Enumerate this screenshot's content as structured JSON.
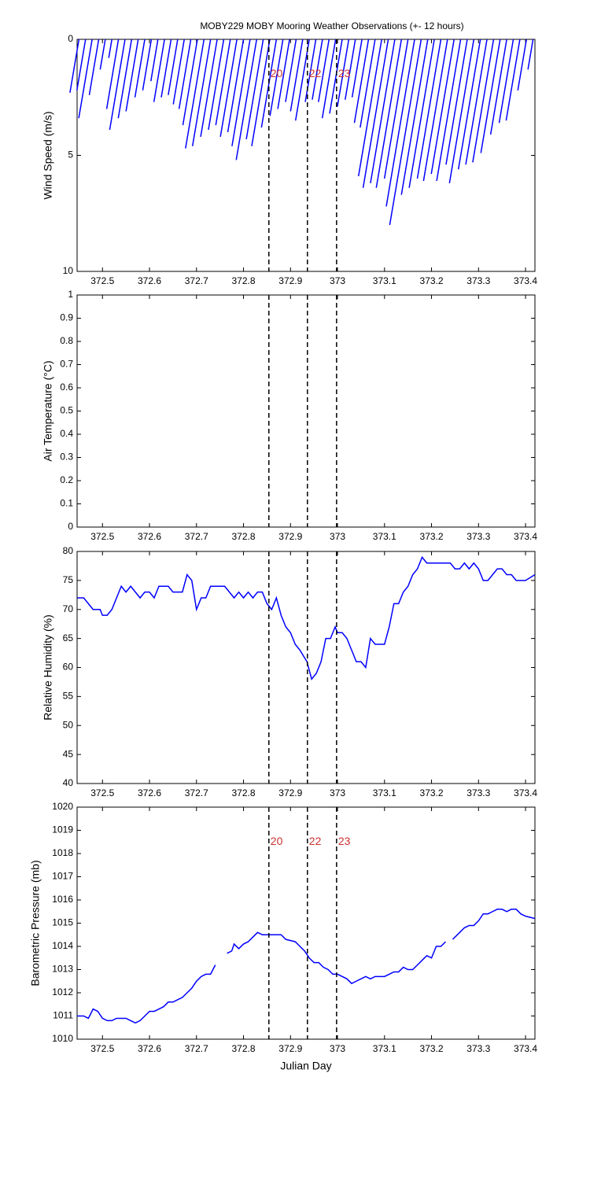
{
  "chart_data": [
    {
      "type": "stick",
      "title": "MOBY229 MOBY Mooring Weather Observations (+- 12 hours)",
      "ylabel": "Wind Speed (m/s)",
      "xlim": [
        372.446,
        373.42
      ],
      "xticks": [
        372.5,
        372.6,
        372.7,
        372.8,
        372.9,
        373,
        373.1,
        373.2,
        373.3,
        373.4
      ],
      "ylim": [
        0,
        10
      ],
      "yticks": [
        0,
        5,
        10
      ],
      "y_reversed": true,
      "color": "#0000ff",
      "vlines": [
        372.854,
        372.936,
        372.998
      ],
      "vline_labels": [
        "20",
        "22",
        "23"
      ],
      "vline_label_y": 1.5,
      "vline_label_color": "#cc3333",
      "x": [
        372.45,
        372.464,
        372.478,
        372.492,
        372.506,
        372.52,
        372.534,
        372.548,
        372.562,
        372.576,
        372.59,
        372.604,
        372.618,
        372.632,
        372.646,
        372.66,
        372.674,
        372.688,
        372.702,
        372.716,
        372.73,
        372.744,
        372.758,
        372.772,
        372.786,
        372.8,
        372.814,
        372.828,
        372.842,
        372.856,
        372.87,
        372.884,
        372.898,
        372.912,
        372.926,
        372.94,
        372.954,
        372.968,
        372.982,
        372.996,
        373.01,
        373.024,
        373.038,
        373.052,
        373.066,
        373.08,
        373.094,
        373.108,
        373.122,
        373.136,
        373.15,
        373.164,
        373.178,
        373.192,
        373.206,
        373.22,
        373.234,
        373.248,
        373.262,
        373.276,
        373.29,
        373.304,
        373.318,
        373.332,
        373.346,
        373.36,
        373.374,
        373.388,
        373.402,
        373.416
      ],
      "values": [
        2.3,
        2.2,
        3.4,
        2.4,
        1.3,
        0.8,
        3.0,
        3.9,
        3.4,
        3.1,
        2.5,
        2.2,
        1.8,
        2.7,
        2.5,
        2.4,
        2.8,
        3.0,
        3.7,
        4.7,
        4.6,
        4.2,
        3.9,
        3.7,
        4.2,
        4.0,
        4.6,
        5.2,
        4.3,
        4.6,
        3.8,
        3.3,
        3.0,
        2.7,
        3.1,
        3.5,
        2.7,
        2.6,
        2.7,
        3.4,
        3.2,
        2.9,
        2.6,
        2.5,
        3.6,
        3.8,
        5.9,
        6.4,
        6.2,
        6.4,
        6.0,
        7.2,
        8.0,
        6.7,
        6.4,
        6.0,
        6.1,
        5.8,
        6.1,
        5.4,
        6.2,
        5.6,
        5.4,
        5.3,
        4.9,
        4.1,
        3.6,
        3.5,
        2.2,
        1.3
      ]
    },
    {
      "type": "line",
      "ylabel": "Air Temperature (°C)",
      "xlim": [
        372.446,
        373.42
      ],
      "xticks": [
        372.5,
        372.6,
        372.7,
        372.8,
        372.9,
        373,
        373.1,
        373.2,
        373.3,
        373.4
      ],
      "ylim": [
        0,
        1
      ],
      "yticks": [
        0,
        0.1,
        0.2,
        0.3,
        0.4,
        0.5,
        0.6,
        0.7,
        0.8,
        0.9,
        1
      ],
      "vlines": [
        372.854,
        372.936,
        372.998
      ],
      "x": [],
      "values": [],
      "color": "#0000ff"
    },
    {
      "type": "line",
      "ylabel": "Relative Humidity (%)",
      "xlim": [
        372.446,
        373.42
      ],
      "xticks": [
        372.5,
        372.6,
        372.7,
        372.8,
        372.9,
        373,
        373.1,
        373.2,
        373.3,
        373.4
      ],
      "ylim": [
        40,
        80
      ],
      "yticks": [
        40,
        45,
        50,
        55,
        60,
        65,
        70,
        75,
        80
      ],
      "vlines": [
        372.854,
        372.936,
        372.998
      ],
      "color": "#0000ff",
      "x": [
        372.446,
        372.46,
        372.47,
        372.48,
        372.495,
        372.5,
        372.51,
        372.52,
        372.53,
        372.54,
        372.55,
        372.56,
        372.57,
        372.58,
        372.59,
        372.6,
        372.61,
        372.62,
        372.64,
        372.65,
        372.67,
        372.68,
        372.69,
        372.7,
        372.71,
        372.72,
        372.73,
        372.76,
        372.78,
        372.79,
        372.8,
        372.81,
        372.82,
        372.83,
        372.84,
        372.85,
        372.86,
        372.87,
        372.88,
        372.89,
        372.9,
        372.91,
        372.92,
        372.935,
        372.945,
        372.955,
        372.965,
        372.975,
        372.985,
        372.995,
        373.0,
        373.01,
        373.02,
        373.03,
        373.04,
        373.05,
        373.06,
        373.07,
        373.08,
        373.09,
        373.1,
        373.11,
        373.12,
        373.13,
        373.14,
        373.15,
        373.16,
        373.17,
        373.18,
        373.19,
        373.2,
        373.24,
        373.25,
        373.26,
        373.27,
        373.28,
        373.29,
        373.3,
        373.31,
        373.32,
        373.33,
        373.34,
        373.35,
        373.36,
        373.37,
        373.38,
        373.4,
        373.42
      ],
      "values": [
        72,
        72,
        71,
        70,
        70,
        69,
        69,
        70,
        72,
        74,
        73,
        74,
        73,
        72,
        73,
        73,
        72,
        74,
        74,
        73,
        73,
        76,
        75,
        70,
        72,
        72,
        74,
        74,
        72,
        73,
        72,
        73,
        72,
        73,
        73,
        71,
        70,
        72,
        69,
        67,
        66,
        64,
        63,
        61,
        58,
        59,
        61,
        65,
        65,
        67,
        66,
        66,
        65,
        63,
        61,
        61,
        60,
        65,
        64,
        64,
        64,
        67,
        71,
        71,
        73,
        74,
        76,
        77,
        79,
        78,
        78,
        78,
        77,
        77,
        78,
        77,
        78,
        77,
        75,
        75,
        76,
        77,
        77,
        76,
        76,
        75,
        75,
        76
      ]
    },
    {
      "type": "line",
      "ylabel": "Barometric Pressure (mb)",
      "xlabel": "Julian Day",
      "xlim": [
        372.446,
        373.42
      ],
      "xticks": [
        372.5,
        372.6,
        372.7,
        372.8,
        372.9,
        373,
        373.1,
        373.2,
        373.3,
        373.4
      ],
      "ylim": [
        1010,
        1020
      ],
      "yticks": [
        1010,
        1011,
        1012,
        1013,
        1014,
        1015,
        1016,
        1017,
        1018,
        1019,
        1020
      ],
      "vlines": [
        372.854,
        372.936,
        372.998
      ],
      "vline_labels": [
        "20",
        "22",
        "23"
      ],
      "vline_label_y": 1018.5,
      "vline_label_color": "#cc3333",
      "color": "#0000ff",
      "x": [
        372.446,
        372.46,
        372.47,
        372.48,
        372.49,
        372.5,
        372.51,
        372.52,
        372.53,
        372.54,
        372.55,
        372.56,
        372.57,
        372.58,
        372.59,
        372.6,
        372.61,
        372.62,
        372.63,
        372.64,
        372.65,
        372.66,
        372.67,
        372.68,
        372.69,
        372.7,
        372.71,
        372.72,
        372.73,
        372.74,
        null,
        372.765,
        372.775,
        372.78,
        372.79,
        372.8,
        372.81,
        372.82,
        372.83,
        372.84,
        372.86,
        372.88,
        372.89,
        372.91,
        372.92,
        372.93,
        372.94,
        372.95,
        372.96,
        372.97,
        372.98,
        372.99,
        373.0,
        373.01,
        373.02,
        373.03,
        373.04,
        373.05,
        373.06,
        373.07,
        373.08,
        373.1,
        373.11,
        373.12,
        373.13,
        373.14,
        373.15,
        373.16,
        373.17,
        373.18,
        373.19,
        373.2,
        373.21,
        373.22,
        373.23,
        null,
        373.245,
        373.25,
        373.26,
        373.27,
        373.28,
        373.29,
        373.3,
        373.31,
        373.32,
        373.33,
        373.34,
        373.35,
        373.36,
        373.37,
        373.38,
        373.39,
        373.4,
        373.42
      ],
      "values": [
        1011.0,
        1011.0,
        1010.9,
        1011.3,
        1011.2,
        1010.9,
        1010.8,
        1010.8,
        1010.9,
        1010.9,
        1010.9,
        1010.8,
        1010.7,
        1010.8,
        1011.0,
        1011.2,
        1011.2,
        1011.3,
        1011.4,
        1011.6,
        1011.6,
        1011.7,
        1011.8,
        1012.0,
        1012.2,
        1012.5,
        1012.7,
        1012.8,
        1012.8,
        1013.2,
        null,
        1013.7,
        1013.8,
        1014.1,
        1013.9,
        1014.1,
        1014.2,
        1014.4,
        1014.6,
        1014.5,
        1014.5,
        1014.5,
        1014.3,
        1014.2,
        1014.0,
        1013.8,
        1013.5,
        1013.3,
        1013.3,
        1013.1,
        1013.0,
        1012.8,
        1012.8,
        1012.7,
        1012.6,
        1012.4,
        1012.5,
        1012.6,
        1012.7,
        1012.6,
        1012.7,
        1012.7,
        1012.8,
        1012.9,
        1012.9,
        1013.1,
        1013.0,
        1013.0,
        1013.2,
        1013.4,
        1013.6,
        1013.5,
        1014.0,
        1014.0,
        1014.2,
        null,
        1014.3,
        1014.4,
        1014.6,
        1014.8,
        1014.9,
        1014.9,
        1015.1,
        1015.4,
        1015.4,
        1015.5,
        1015.6,
        1015.6,
        1015.5,
        1015.6,
        1015.6,
        1015.4,
        1015.3,
        1015.2
      ]
    }
  ]
}
